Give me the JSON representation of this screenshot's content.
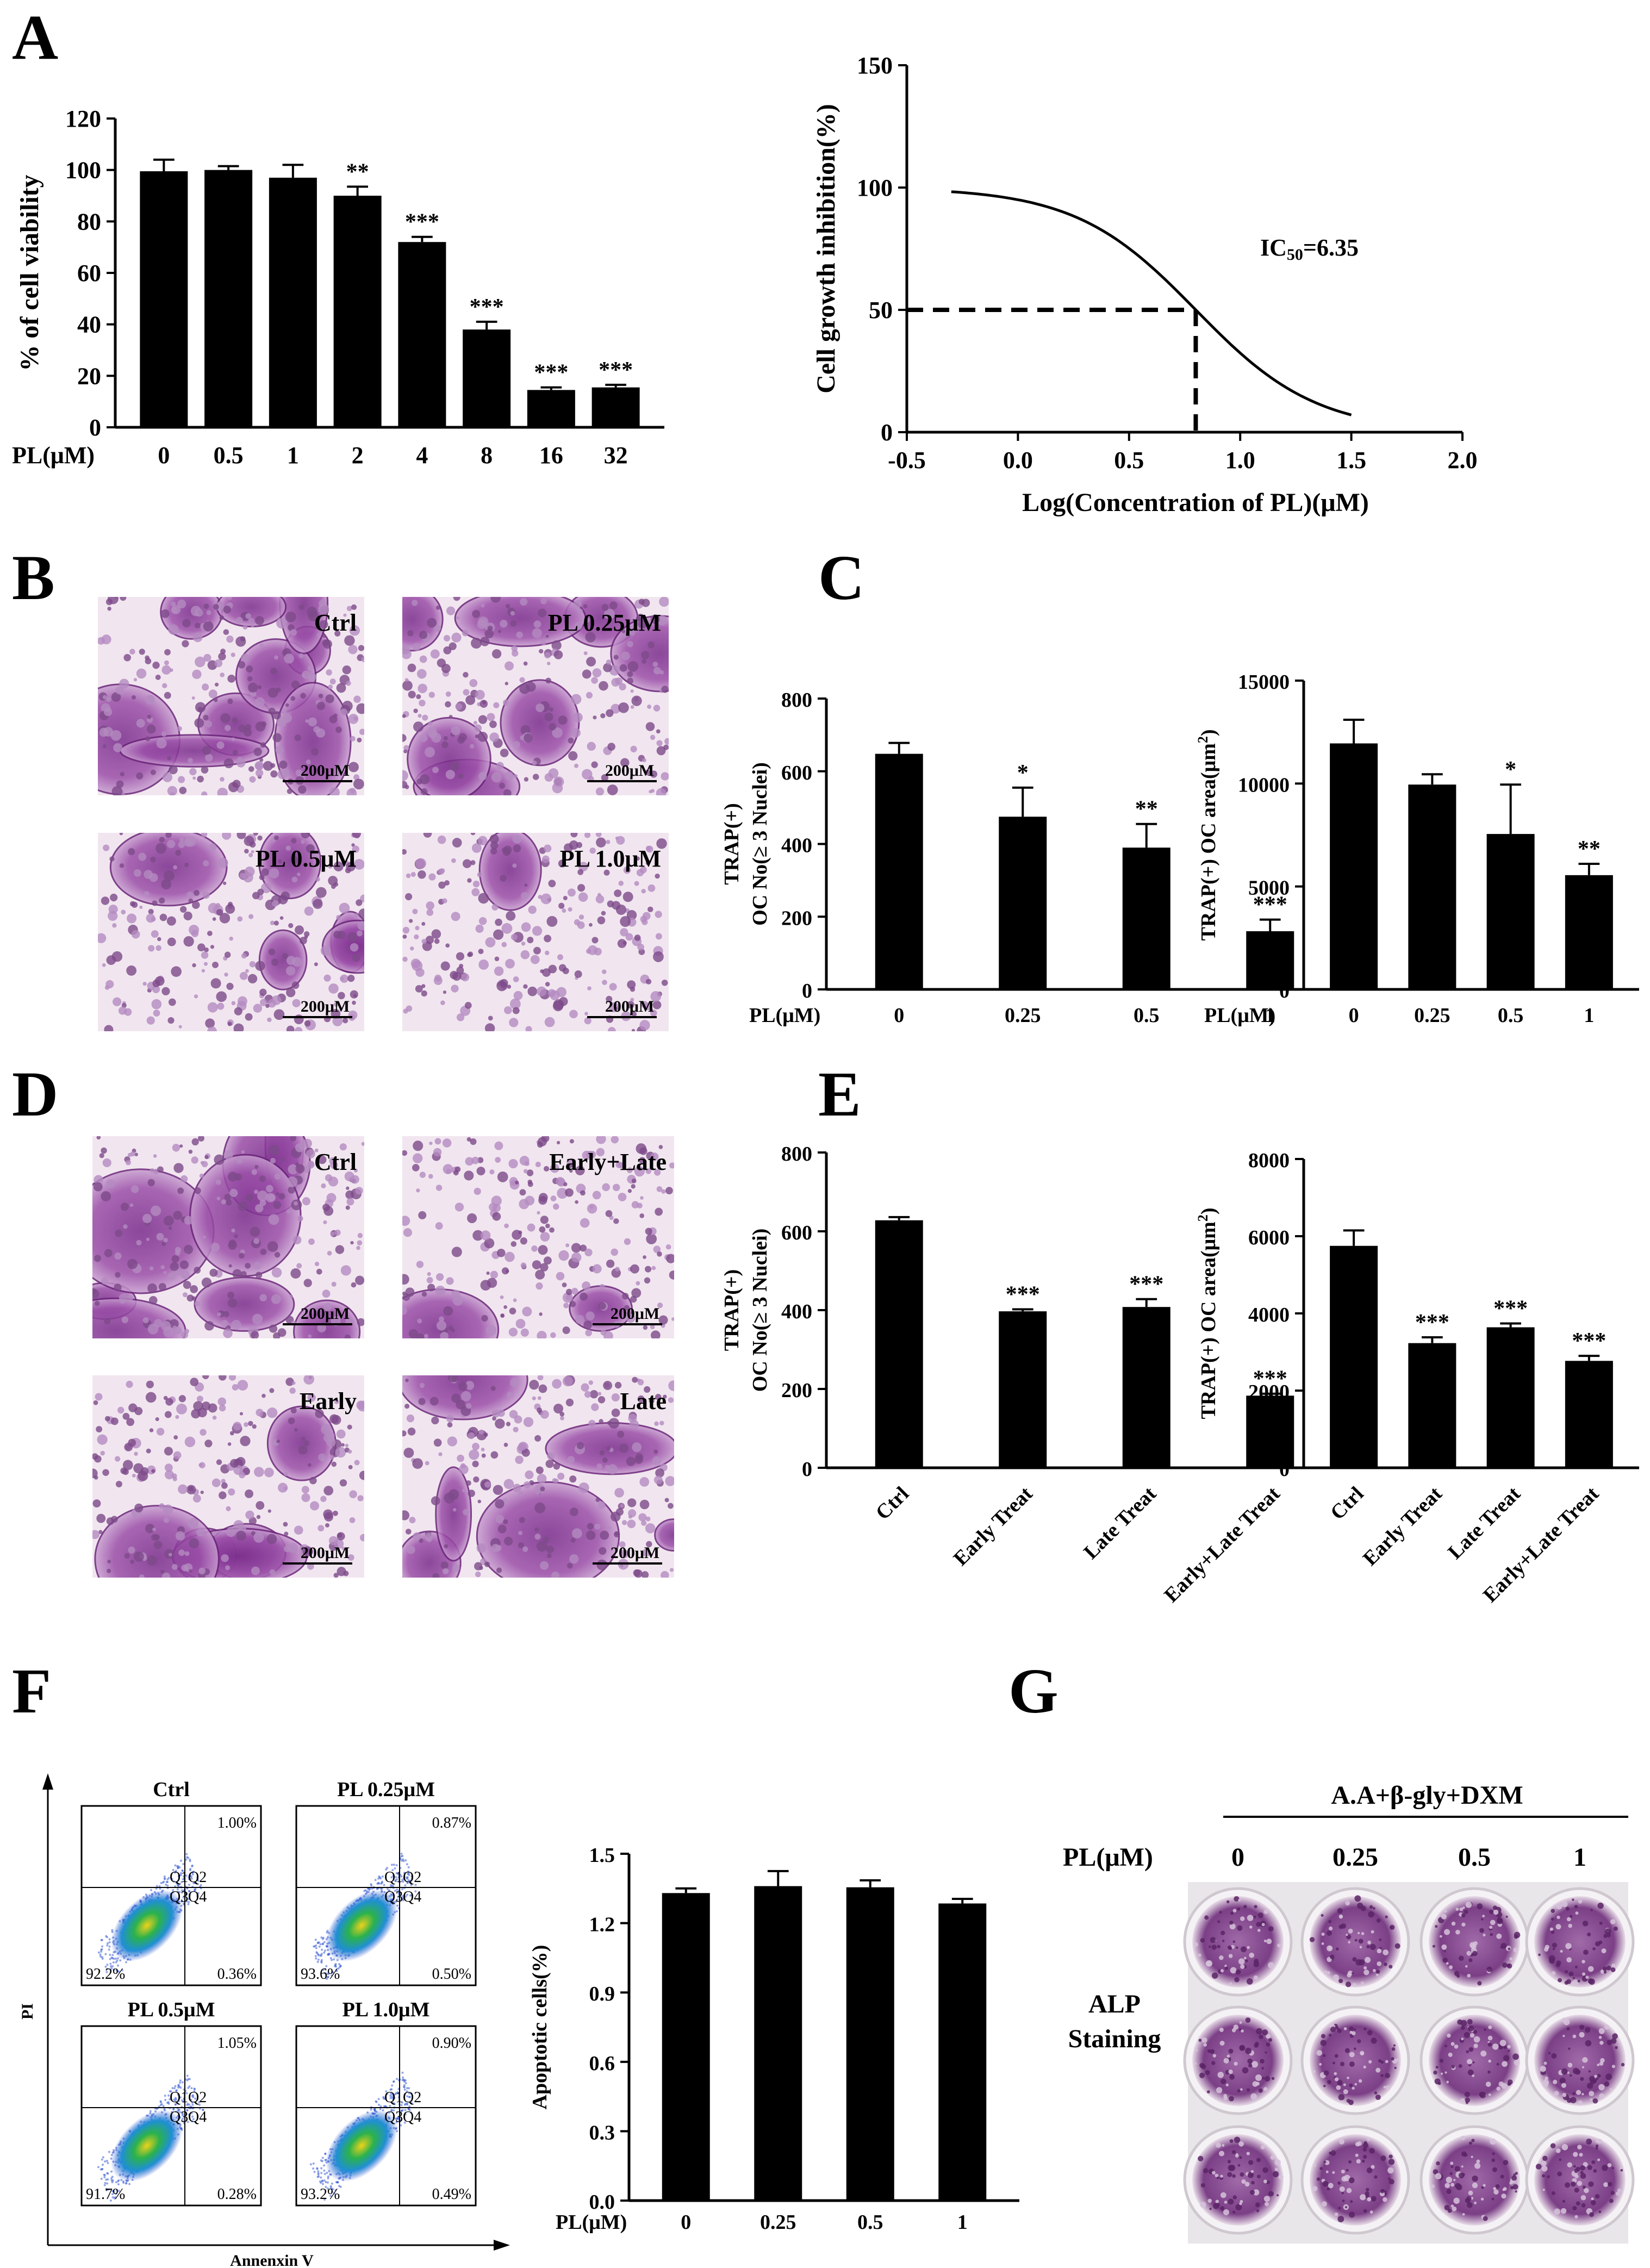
{
  "panels": {
    "A": "A",
    "B": "B",
    "C": "C",
    "D": "D",
    "E": "E",
    "F": "F",
    "G": "G"
  },
  "colors": {
    "bar": "#000000",
    "purple": "#9b4d9b",
    "scatter_hot": "#2bb24c",
    "scatter_cold": "#2a4fd0"
  },
  "chart_data": [
    {
      "id": "A_viability",
      "type": "bar",
      "xlabel": "PL(μM)",
      "ylabel": "% of cell viability",
      "ylim": [
        0,
        120
      ],
      "yticks": [
        "0",
        "20",
        "40",
        "60",
        "80",
        "100",
        "120"
      ],
      "categories": [
        "0",
        "0.5",
        "1",
        "2",
        "4",
        "8",
        "16",
        "32"
      ],
      "values": [
        99.5,
        100,
        97,
        90,
        72,
        38,
        14.5,
        15.5
      ],
      "errors": [
        4.5,
        1.5,
        5,
        3.5,
        2,
        3,
        1,
        1
      ],
      "significance": [
        "",
        "",
        "",
        "**",
        "***",
        "***",
        "***",
        "***"
      ]
    },
    {
      "id": "A_ic50",
      "type": "line",
      "xlabel": "Log(Concentration of PL)(μM)",
      "ylabel": "Cell growth inhibition(%)",
      "xlim": [
        -0.5,
        2.0
      ],
      "ylim": [
        0,
        150
      ],
      "xticks": [
        "-0.5",
        "0.0",
        "0.5",
        "1.0",
        "1.5",
        "2.0"
      ],
      "yticks": [
        "0",
        "50",
        "100",
        "150"
      ],
      "curve": {
        "x_start": -0.3,
        "x_end": 1.5,
        "top": 100,
        "bottom": 0,
        "log_ic50": 0.8,
        "hill": 1.6
      },
      "marker": {
        "x": 0.8,
        "y": 50
      },
      "annotation": "IC",
      "annotation_sub": "50",
      "annotation_value": "=6.35"
    },
    {
      "id": "C_number",
      "type": "bar",
      "xlabel": "PL(μM)",
      "ylabel_line1": "TRAP(+)",
      "ylabel_line2": "OC No(≥ 3 Nuclei)",
      "ylim": [
        0,
        800
      ],
      "yticks": [
        "0",
        "200",
        "400",
        "600",
        "800"
      ],
      "categories": [
        "0",
        "0.25",
        "0.5",
        "1"
      ],
      "values": [
        648,
        475,
        390,
        160
      ],
      "errors": [
        30,
        80,
        65,
        32
      ],
      "significance": [
        "",
        "*",
        "**",
        "***"
      ]
    },
    {
      "id": "C_area",
      "type": "bar",
      "xlabel": "PL(μM)",
      "ylabel": "TRAP(+) OC area(μm",
      "ylabel_sup": "2",
      "ylabel_end": ")",
      "ylim": [
        0,
        15000
      ],
      "yticks": [
        "0",
        "5000",
        "10000",
        "15000"
      ],
      "categories": [
        "0",
        "0.25",
        "0.5",
        "1"
      ],
      "values": [
        11950,
        9950,
        7550,
        5550
      ],
      "errors": [
        1150,
        500,
        2400,
        550
      ],
      "significance": [
        "",
        "",
        "*",
        "**"
      ]
    },
    {
      "id": "E_number",
      "type": "bar",
      "ylabel_line1": "TRAP(+)",
      "ylabel_line2": "OC No(≥ 3 Nuclei)",
      "ylim": [
        0,
        800
      ],
      "yticks": [
        "0",
        "200",
        "400",
        "600",
        "800"
      ],
      "categories": [
        "Ctrl",
        "Early Treat",
        "Late Treat",
        "Early+Late Treat"
      ],
      "values": [
        628,
        397,
        408,
        183
      ],
      "errors": [
        8,
        5,
        20,
        5
      ],
      "significance": [
        "",
        "***",
        "***",
        "***"
      ]
    },
    {
      "id": "E_area",
      "type": "bar",
      "ylabel": "TRAP(+) OC area(μm",
      "ylabel_sup": "2",
      "ylabel_end": ")",
      "ylim": [
        0,
        8000
      ],
      "yticks": [
        "0",
        "2000",
        "4000",
        "6000",
        "8000"
      ],
      "categories": [
        "Ctrl",
        "Early Treat",
        "Late Treat",
        "Early+Late Treat"
      ],
      "values": [
        5750,
        3230,
        3640,
        2770
      ],
      "errors": [
        400,
        150,
        100,
        130
      ],
      "significance": [
        "",
        "***",
        "***",
        "***"
      ]
    },
    {
      "id": "F_apoptosis",
      "type": "bar",
      "xlabel": "PL(μM)",
      "ylabel": "Apoptotic cells(%)",
      "ylim": [
        0,
        1.5
      ],
      "yticks": [
        "0.0",
        "0.3",
        "0.6",
        "0.9",
        "1.2",
        "1.5"
      ],
      "categories": [
        "0",
        "0.25",
        "0.5",
        "1"
      ],
      "values": [
        1.33,
        1.36,
        1.355,
        1.285
      ],
      "errors": [
        0.02,
        0.065,
        0.03,
        0.02
      ],
      "significance": [
        "",
        "",
        "",
        ""
      ]
    }
  ],
  "micrographs_B": [
    {
      "label": "Ctrl",
      "scale": "200μM"
    },
    {
      "label": "PL 0.25μM",
      "scale": "200μM"
    },
    {
      "label": "PL 0.5μM",
      "scale": "200μM"
    },
    {
      "label": "PL 1.0μM",
      "scale": "200μM"
    }
  ],
  "micrographs_D": [
    {
      "label": "Ctrl",
      "scale": "200μM"
    },
    {
      "label": "Early+Late",
      "scale": "200μM"
    },
    {
      "label": "Early",
      "scale": "200μM"
    },
    {
      "label": "Late",
      "scale": "200μM"
    }
  ],
  "flow_F": {
    "y_axis": "PI",
    "x_axis": "Annenxin V",
    "plots": [
      {
        "title": "Ctrl",
        "q2": "1.00%",
        "q3": "92.2%",
        "q4": "0.36%"
      },
      {
        "title": "PL 0.25μM",
        "q2": "0.87%",
        "q3": "93.6%",
        "q4": "0.50%"
      },
      {
        "title": "PL 0.5μM",
        "q2": "1.05%",
        "q3": "91.7%",
        "q4": "0.28%"
      },
      {
        "title": "PL 1.0μM",
        "q2": "0.90%",
        "q3": "93.2%",
        "q4": "0.49%"
      }
    ],
    "quadrant_names": [
      "Q1",
      "Q2",
      "Q3",
      "Q4"
    ]
  },
  "alp_G": {
    "header": "A.A+β-gly+DXM",
    "row_label": "PL(μM)",
    "doses": [
      "0",
      "0.25",
      "0.5",
      "1"
    ],
    "side_label_1": "ALP",
    "side_label_2": "Staining"
  }
}
